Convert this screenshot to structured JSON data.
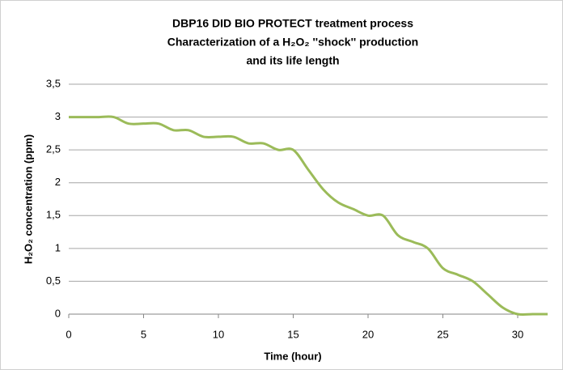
{
  "chart_data": {
    "type": "line",
    "title": [
      "DBP16 DID BIO PROTECT treatment process",
      "Characterization of a H₂O₂ ''shock'' production",
      "and its life length"
    ],
    "x_label": "Time (hour)",
    "y_label": "H₂O₂ concentration (ppm)",
    "x": [
      0,
      1,
      2,
      3,
      4,
      5,
      6,
      7,
      8,
      9,
      10,
      11,
      12,
      13,
      14,
      15,
      16,
      17,
      18,
      19,
      20,
      21,
      22,
      23,
      24,
      25,
      26,
      27,
      28,
      29,
      30,
      31,
      32
    ],
    "values": [
      3,
      3,
      3,
      3,
      2.9,
      2.9,
      2.9,
      2.8,
      2.8,
      2.7,
      2.7,
      2.7,
      2.6,
      2.6,
      2.5,
      2.5,
      2.2,
      1.9,
      1.7,
      1.6,
      1.5,
      1.5,
      1.2,
      1.1,
      1.0,
      0.7,
      0.6,
      0.5,
      0.3,
      0.1,
      0,
      0,
      0
    ],
    "color": "#9bbb59",
    "xlim": [
      0,
      32
    ],
    "xticks": [
      0,
      5,
      10,
      15,
      20,
      25,
      30
    ],
    "ylim": [
      0,
      3.5
    ],
    "yticks": [
      0,
      {
        "value": 0.5,
        "label": "0,5"
      },
      1,
      {
        "value": 1.5,
        "label": "1,5"
      },
      2,
      {
        "value": 2.5,
        "label": "2,5"
      },
      3,
      {
        "value": 3.5,
        "label": "3,5"
      }
    ],
    "grid": true
  }
}
